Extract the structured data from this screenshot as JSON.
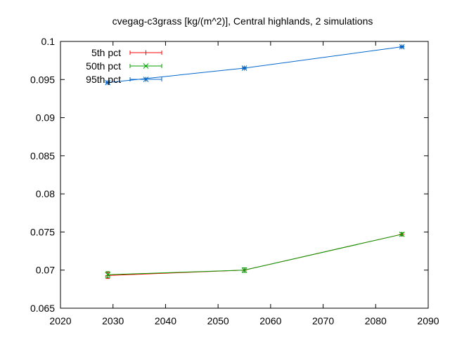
{
  "chart_data": {
    "type": "line",
    "title": "cvegag-c3grass [kg/(m^2)], Central highlands, 2 simulations",
    "xlabel": "",
    "ylabel": "",
    "xlim": [
      2020,
      2090
    ],
    "ylim": [
      0.065,
      0.1
    ],
    "xticks": [
      "2020",
      "2030",
      "2040",
      "2050",
      "2060",
      "2070",
      "2080",
      "2090"
    ],
    "yticks": [
      "0.065",
      "0.07",
      "0.075",
      "0.08",
      "0.085",
      "0.09",
      "0.095",
      "0.1"
    ],
    "grid": false,
    "legend_position": "top-left",
    "series": [
      {
        "name": "5th pct",
        "color": "#ff0000",
        "marker": "plus",
        "x": [
          2029,
          2055,
          2085
        ],
        "y": [
          0.0693,
          0.07,
          0.0747
        ],
        "err": [
          0.0004,
          0.0003,
          0.0002
        ]
      },
      {
        "name": "50th pct",
        "color": "#00a000",
        "marker": "cross",
        "x": [
          2029,
          2055,
          2085
        ],
        "y": [
          0.0694,
          0.07,
          0.0747
        ],
        "err": [
          0.0004,
          0.0003,
          0.0002
        ]
      },
      {
        "name": "95th pct",
        "color": "#0066cc",
        "marker": "star",
        "x": [
          2029,
          2055,
          2085
        ],
        "y": [
          0.0946,
          0.0965,
          0.0993
        ],
        "err": [
          0.0001,
          0.0001,
          0.0001
        ]
      }
    ]
  }
}
